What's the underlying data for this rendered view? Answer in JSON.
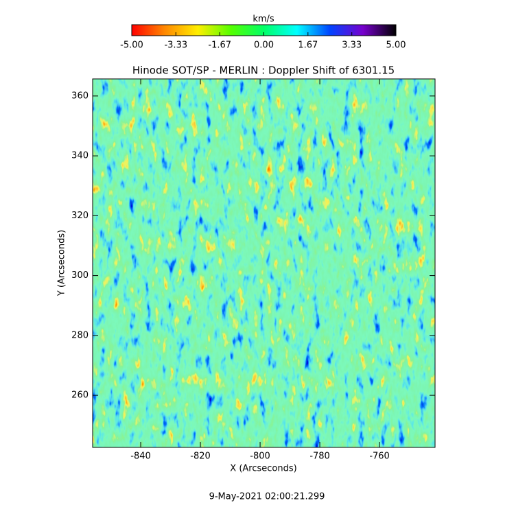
{
  "chart_data": {
    "type": "heatmap",
    "title": "Hinode SOT/SP - MERLIN : Doppler Shift of 6301.15",
    "x_label": "X (Arcseconds)",
    "y_label": "Y (Arcseconds)",
    "date": "9-May-2021 02:00:21.299",
    "xlim": [
      -856.1,
      -741.4
    ],
    "ylim": [
      242.6,
      365.7
    ],
    "xticks": [
      -840,
      -820,
      -800,
      -780,
      -760
    ],
    "yticks": [
      260,
      280,
      300,
      320,
      340,
      360
    ],
    "colorbar": {
      "label": "km/s",
      "lim": [
        -5,
        5
      ],
      "ticks": [
        {
          "value": -5,
          "label": "-5.00"
        },
        -3.33,
        -1.67,
        {
          "value": 0,
          "label": "0.00"
        },
        1.67,
        3.33,
        {
          "value": 5,
          "label": "5.00"
        }
      ],
      "colors": [
        "#ff0000",
        "#ff8800",
        "#ffee00",
        "#55ff00",
        "#00ff66",
        "#00ffff",
        "#0044ff",
        "#7700cc",
        "#000000"
      ]
    }
  }
}
